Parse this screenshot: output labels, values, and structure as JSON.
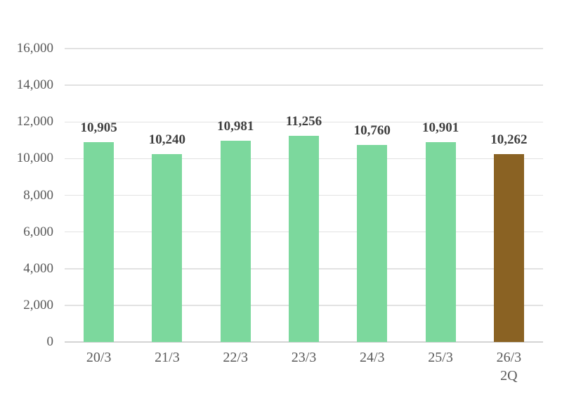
{
  "chart_data": {
    "type": "bar",
    "title": "",
    "xlabel": "",
    "ylabel": "",
    "categories": [
      "20/3",
      "21/3",
      "22/3",
      "23/3",
      "24/3",
      "25/3",
      "26/3\n2Q"
    ],
    "values": [
      10905,
      10240,
      10981,
      11256,
      10760,
      10901,
      10262
    ],
    "data_labels": [
      "10,905",
      "10,240",
      "10,981",
      "11,256",
      "10,760",
      "10,901",
      "10,262"
    ],
    "bar_colors": [
      "#7cd89d",
      "#7cd89d",
      "#7cd89d",
      "#7cd89d",
      "#7cd89d",
      "#7cd89d",
      "#8a6223"
    ],
    "ylim": [
      0,
      16000
    ],
    "ytick_step": 2000,
    "ytick_labels": [
      "0",
      "2,000",
      "4,000",
      "6,000",
      "8,000",
      "10,000",
      "12,000",
      "14,000",
      "16,000"
    ],
    "grid": true,
    "legend": "none"
  },
  "colors": {
    "bar_default": "#7cd89d",
    "bar_highlight": "#8a6223",
    "gridline": "#e2e2e2",
    "zero_line": "#d4d4d4",
    "axis_text": "#595959",
    "value_label_text": "#3f3f3f"
  }
}
